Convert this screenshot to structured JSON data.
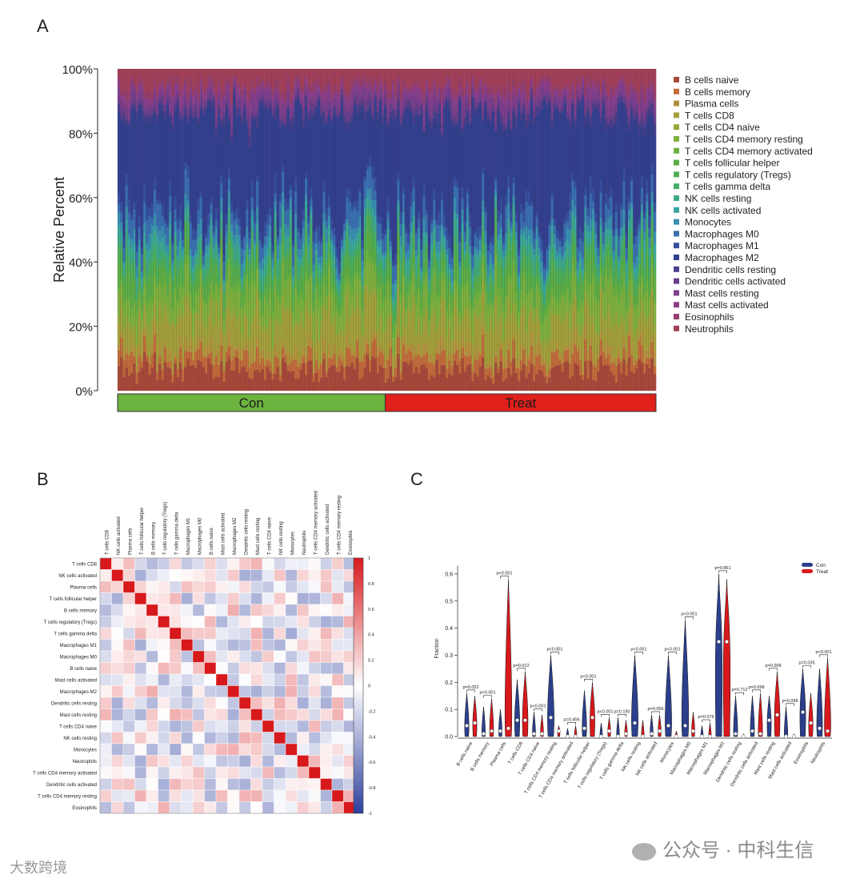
{
  "panels": {
    "a": "A",
    "b": "B",
    "c": "C"
  },
  "chart_data": [
    {
      "type": "bar",
      "panel": "A",
      "stacked": true,
      "normalized": true,
      "ylabel": "Relative Percent",
      "ytick_labels": [
        "0%",
        "20%",
        "40%",
        "60%",
        "80%",
        "100%"
      ],
      "ylim": [
        0,
        100
      ],
      "groups": [
        {
          "label": "Con",
          "color": "#6db33f"
        },
        {
          "label": "Treat",
          "color": "#e0201b"
        }
      ],
      "legend_position": "right",
      "series": [
        {
          "name": "B cells naive",
          "color": "#a8493b"
        },
        {
          "name": "B cells memory",
          "color": "#c26b3c"
        },
        {
          "name": "Plasma cells",
          "color": "#b5923f"
        },
        {
          "name": "T cells CD8",
          "color": "#a4a03c"
        },
        {
          "name": "T cells CD4 naive",
          "color": "#96a83c"
        },
        {
          "name": "T cells CD4 memory resting",
          "color": "#7fb03f"
        },
        {
          "name": "T cells CD4 memory activated",
          "color": "#6cb23f"
        },
        {
          "name": "T cells follicular helper",
          "color": "#5cad47"
        },
        {
          "name": "T cells regulatory (Tregs)",
          "color": "#4fae55"
        },
        {
          "name": "T cells gamma delta",
          "color": "#46ad6b"
        },
        {
          "name": "NK cells resting",
          "color": "#3ea988"
        },
        {
          "name": "NK cells activated",
          "color": "#3aa6a0"
        },
        {
          "name": "Monocytes",
          "color": "#3a8fb0"
        },
        {
          "name": "Macrophages M0",
          "color": "#3a6fb0"
        },
        {
          "name": "Macrophages M1",
          "color": "#36509f"
        },
        {
          "name": "Macrophages M2",
          "color": "#33408f"
        },
        {
          "name": "Dendritic cells resting",
          "color": "#4a3f8c"
        },
        {
          "name": "Dendritic cells activated",
          "color": "#6a3f8c"
        },
        {
          "name": "Mast cells resting",
          "color": "#7e3f8e"
        },
        {
          "name": "Mast cells activated",
          "color": "#8e3f8a"
        },
        {
          "name": "Eosinophils",
          "color": "#963f6c"
        },
        {
          "name": "Neutrophils",
          "color": "#a3405a"
        }
      ]
    },
    {
      "type": "heatmap",
      "panel": "B",
      "columns": [
        "T cells CD8",
        "NK cells activated",
        "Plasma cells",
        "T cells follicular helper",
        "B cells memory",
        "T cells regulatory (Tregs)",
        "T cells gamma delta",
        "Macrophages M1",
        "Macrophages M0",
        "B cells naive",
        "Mast cells activated",
        "Macrophages M2",
        "Dendritic cells resting",
        "Mast cells resting",
        "T cells CD4 naive",
        "NK cells resting",
        "Monocytes",
        "Neutrophils",
        "T cells CD4 memory activated",
        "Dendritic cells activated",
        "T cells CD4 memory resting",
        "Eosinophils"
      ],
      "rows": [
        "T cells CD8",
        "NK cells activated",
        "Plasma cells",
        "T cells follicular helper",
        "B cells memory",
        "T cells regulatory (Tregs)",
        "T cells gamma delta",
        "Macrophages M1",
        "Macrophages M0",
        "B cells naive",
        "Mast cells activated",
        "Macrophages M2",
        "Dendritic cells resting",
        "Mast cells resting",
        "T cells CD4 naive",
        "NK cells resting",
        "Monocytes",
        "Neutrophils",
        "T cells CD4 memory activated",
        "Dendritic cells activated",
        "T cells CD4 memory resting",
        "Eosinophils"
      ],
      "colorbar_ticks": [
        "1",
        "0.8",
        "0.6",
        "0.4",
        "0.2",
        "0",
        "-0.2",
        "-0.4",
        "-0.6",
        "-0.8",
        "-1"
      ],
      "colorscale": [
        "#2d3f9e",
        "#ffffff",
        "#d7191c"
      ]
    },
    {
      "type": "violin",
      "panel": "C",
      "ylabel": "Fraction",
      "ylim": [
        0,
        0.65
      ],
      "yticks": [
        0,
        0.1,
        0.2,
        0.3,
        0.4,
        0.5,
        0.6
      ],
      "ytick_labels": [
        "0.0",
        "0.1",
        "0.2",
        "0.3",
        "0.4",
        "0.5",
        "0.6"
      ],
      "legend_position": "top-right",
      "series": [
        {
          "name": "Con",
          "color": "#2b3f8c"
        },
        {
          "name": "Treat",
          "color": "#d7191c"
        }
      ],
      "categories": [
        "B cells naive",
        "B cells memory",
        "Plasma cells",
        "T cells CD8",
        "T cells CD4 naive",
        "T cells CD4 memory resting",
        "T cells CD4 memory activated",
        "T cells follicular helper",
        "T cells regulatory (Tregs)",
        "T cells gamma delta",
        "NK cells resting",
        "NK cells activated",
        "Monocytes",
        "Macrophages M0",
        "Macrophages M1",
        "Macrophages M2",
        "Dendritic cells resting",
        "Dendritic cells activated",
        "Mast cells resting",
        "Mast cells activated",
        "Eosinophils",
        "Neutrophils"
      ],
      "pvalues": [
        "p=0.052",
        "p<0.001",
        "p<0.001",
        "p=0.012",
        "p<0.001",
        "p<0.001",
        "p=0.456",
        "p<0.001",
        "p<0.001",
        "p=0.190",
        "p<0.001",
        "p=0.056",
        "p<0.001",
        "p<0.001",
        "p=0.076",
        "p=0.861",
        "p=0.712",
        "p=0.698",
        "p=0.008",
        "p=0.098",
        "p=0.035",
        "p<0.001"
      ],
      "con_max": [
        0.16,
        0.11,
        0.1,
        0.21,
        0.09,
        0.3,
        0.03,
        0.17,
        0.05,
        0.07,
        0.3,
        0.08,
        0.3,
        0.43,
        0.04,
        0.6,
        0.15,
        0.15,
        0.15,
        0.11,
        0.25,
        0.25
      ],
      "treat_max": [
        0.15,
        0.14,
        0.58,
        0.24,
        0.08,
        0.04,
        0.04,
        0.2,
        0.07,
        0.06,
        0.06,
        0.08,
        0.02,
        0.09,
        0.05,
        0.58,
        0.01,
        0.16,
        0.24,
        0.01,
        0.16,
        0.29
      ],
      "con_median": [
        0.04,
        0.01,
        0.02,
        0.06,
        0.01,
        0.07,
        0.0,
        0.03,
        0.0,
        0.0,
        0.05,
        0.01,
        0.04,
        0.04,
        0.0,
        0.35,
        0.01,
        0.02,
        0.06,
        0.0,
        0.09,
        0.03
      ],
      "treat_median": [
        0.05,
        0.02,
        0.03,
        0.06,
        0.01,
        0.02,
        0.0,
        0.07,
        0.02,
        0.01,
        0.0,
        0.02,
        0.0,
        0.02,
        0.0,
        0.35,
        0.0,
        0.01,
        0.08,
        0.0,
        0.05,
        0.02
      ]
    }
  ],
  "watermarks": {
    "left": "大数跨境",
    "right": "公众号 · 中科生信"
  }
}
